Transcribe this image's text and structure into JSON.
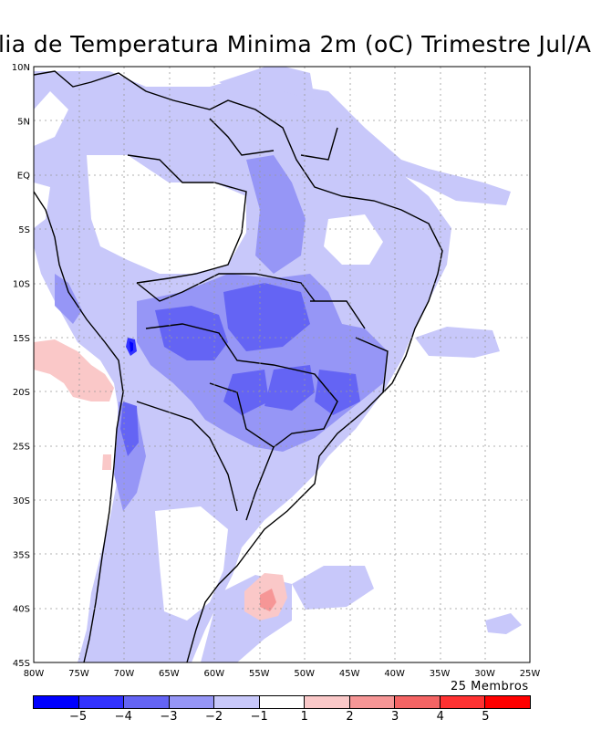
{
  "title": "lia de Temperatura Minima 2m (oC) Trimestre Jul/A",
  "map": {
    "lon_range": [
      -80,
      -25
    ],
    "lat_range": [
      -45,
      10
    ],
    "lon_ticks": [
      "80W",
      "75W",
      "70W",
      "65W",
      "60W",
      "55W",
      "50W",
      "45W",
      "40W",
      "35W",
      "30W",
      "25W"
    ],
    "lat_ticks": [
      "10N",
      "5N",
      "EQ",
      "5S",
      "10S",
      "15S",
      "20S",
      "25S",
      "30S",
      "35S",
      "40S",
      "45S"
    ],
    "grid": true
  },
  "members_label": "25 Membros",
  "colorbar": {
    "labels": [
      "-5",
      "-4",
      "-3",
      "-2",
      "-1",
      "1",
      "2",
      "3",
      "4",
      "5"
    ],
    "colors": [
      "#0000ff",
      "#3232ff",
      "#6464f4",
      "#9696f6",
      "#c8c8fa",
      "#ffffff",
      "#fac8c8",
      "#f69696",
      "#f46464",
      "#ff3232",
      "#ff0000"
    ]
  }
}
